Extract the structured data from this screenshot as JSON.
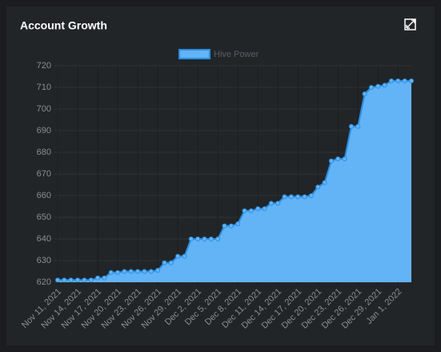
{
  "chart_data": {
    "type": "area",
    "title": "Account Growth",
    "categories": [
      "Nov 11, 2021",
      null,
      null,
      "Nov 14, 2021",
      null,
      null,
      "Nov 17, 2021",
      null,
      null,
      "Nov 20, 2021",
      null,
      null,
      "Nov 23, 2021",
      null,
      null,
      "Nov 26, 2021",
      null,
      null,
      "Nov 29, 2021",
      null,
      null,
      "Dec 2, 2021",
      null,
      null,
      "Dec 5, 2021",
      null,
      null,
      "Dec 8, 2021",
      null,
      null,
      "Dec 11, 2021",
      null,
      null,
      "Dec 14, 2021",
      null,
      null,
      "Dec 17, 2021",
      null,
      null,
      "Dec 20, 2021",
      null,
      null,
      "Dec 23, 2021",
      null,
      null,
      "Dec 26, 2021",
      null,
      null,
      "Dec 29, 2021",
      null,
      null,
      "Jan 1, 2022",
      null,
      null
    ],
    "series": [
      {
        "name": "Hive Power",
        "color": "#63b3f7",
        "values": [
          621,
          621,
          621,
          621,
          621,
          621,
          622,
          622,
          624.5,
          624.5,
          625,
          625,
          625,
          625,
          625,
          625.5,
          629,
          629,
          632,
          632,
          640,
          640,
          640,
          640,
          640,
          646,
          646,
          647,
          653,
          653,
          654,
          654,
          656.5,
          656.5,
          659.5,
          659.5,
          659.5,
          659.5,
          660,
          664,
          666,
          676,
          677,
          677,
          692,
          692,
          707,
          710,
          710.5,
          711,
          713,
          713,
          713,
          713
        ]
      }
    ],
    "ylim": [
      620,
      720
    ],
    "yticks": [
      620,
      630,
      640,
      650,
      660,
      670,
      680,
      690,
      700,
      710,
      720
    ],
    "grid": true,
    "legend": "top"
  }
}
